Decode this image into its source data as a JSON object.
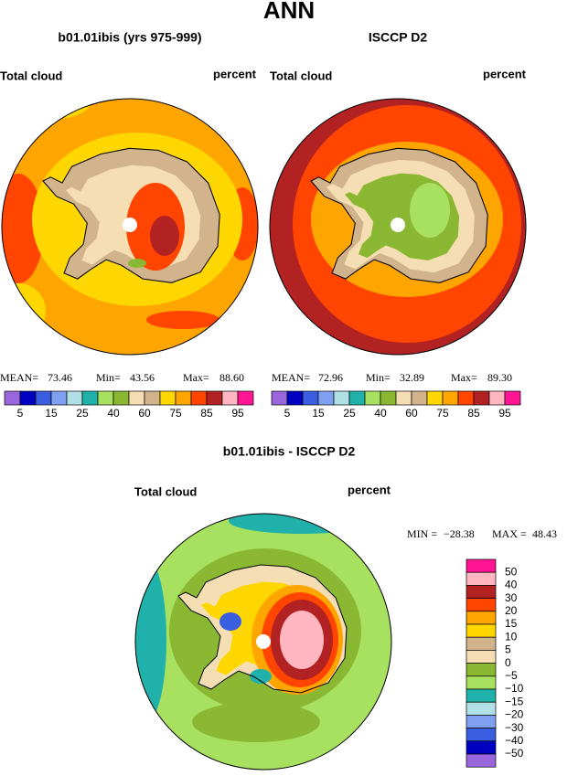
{
  "title": "ANN",
  "panels": [
    {
      "title": "b01.01ibis (yrs 975-999)",
      "left_label": "Total cloud",
      "right_label": "percent",
      "mean_label": "MEAN=",
      "mean": 73.46,
      "min_label": "Min=",
      "min": 43.56,
      "max_label": "Max=",
      "max": {
        "value": 88.6,
        "label": "88.60"
      }
    },
    {
      "title": "ISCCP D2",
      "left_label": "Total cloud",
      "right_label": "percent",
      "mean_label": "MEAN=",
      "mean": 72.96,
      "min_label": "Min=",
      "min": 32.89,
      "max_label": "Max=",
      "max": {
        "value": 89.3,
        "label": "89.30"
      }
    }
  ],
  "colorbar": {
    "colors": [
      "#9966dd",
      "#0000c0",
      "#3a5ee0",
      "#7f9ff0",
      "#b0e0e6",
      "#20b2aa",
      "#a8e060",
      "#8ab832",
      "#f5deb3",
      "#d2b48c",
      "#ffd700",
      "#ffa500",
      "#ff4500",
      "#b22222",
      "#ffb6c1",
      "#ff1493"
    ],
    "ticks": [
      5,
      15,
      25,
      40,
      60,
      75,
      85,
      95
    ]
  },
  "difference": {
    "title": "b01.01ibis - ISCCP D2",
    "left_label": "Total cloud",
    "right_label": "percent",
    "min_label": "MIN =",
    "min": {
      "value": -28.38,
      "label": "−28.38"
    },
    "max_label": "MAX =",
    "max": 48.43,
    "colorbar": {
      "colors": [
        "#ff1493",
        "#ffb6c1",
        "#b22222",
        "#ff4500",
        "#ffa500",
        "#ffd700",
        "#d2b48c",
        "#f5deb3",
        "#8ab832",
        "#a8e060",
        "#20b2aa",
        "#b0e0e6",
        "#7f9ff0",
        "#3a5ee0",
        "#0000c0",
        "#9966dd"
      ],
      "ticks": [
        50,
        40,
        30,
        20,
        15,
        10,
        5,
        0,
        {
          "value": -5,
          "label": "−5"
        },
        {
          "value": -10,
          "label": "−10"
        },
        {
          "value": -15,
          "label": "−15"
        },
        {
          "value": -20,
          "label": "−20"
        },
        {
          "value": -30,
          "label": "−30"
        },
        {
          "value": -40,
          "label": "−40"
        },
        {
          "value": -50,
          "label": "−50"
        }
      ]
    }
  }
}
